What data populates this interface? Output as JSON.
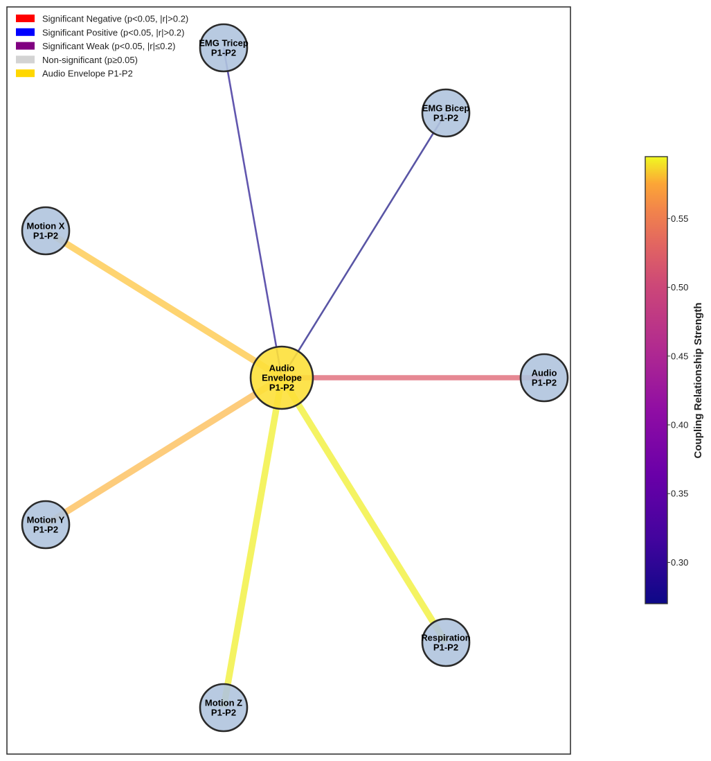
{
  "legend": [
    {
      "color": "#ff0000",
      "label": "Significant Negative (p<0.05, |r|>0.2)"
    },
    {
      "color": "#0000ff",
      "label": "Significant Positive (p<0.05, |r|>0.2)"
    },
    {
      "color": "#800080",
      "label": "Significant Weak (p<0.05, |r|≤0.2)"
    },
    {
      "color": "#d3d3d3",
      "label": "Non-significant (p≥0.05)"
    },
    {
      "color": "#ffd700",
      "label": "Audio Envelope P1-P2"
    }
  ],
  "center_node": {
    "id": "audio-envelope",
    "lines": [
      "Audio",
      "Envelope",
      "P1-P2"
    ],
    "color": "#fde03a"
  },
  "nodes": [
    {
      "id": "emg-tricep",
      "lines": [
        "EMG Tricep",
        "P1-P2"
      ]
    },
    {
      "id": "emg-bicep",
      "lines": [
        "EMG Bicep",
        "P1-P2"
      ]
    },
    {
      "id": "motion-x",
      "lines": [
        "Motion X",
        "P1-P2"
      ]
    },
    {
      "id": "audio",
      "lines": [
        "Audio",
        "P1-P2"
      ]
    },
    {
      "id": "motion-y",
      "lines": [
        "Motion Y",
        "P1-P2"
      ]
    },
    {
      "id": "respiration",
      "lines": [
        "Respiration",
        "P1-P2"
      ]
    },
    {
      "id": "motion-z",
      "lines": [
        "Motion Z",
        "P1-P2"
      ]
    }
  ],
  "edges": [
    {
      "target": "emg-tricep",
      "strength": 0.31,
      "color": "#3a2c9a",
      "significance": "significant"
    },
    {
      "target": "emg-bicep",
      "strength": 0.3,
      "color": "#2f2b8f",
      "significance": "significant"
    },
    {
      "target": "motion-x",
      "strength": 0.55,
      "color": "#fdc43a",
      "significance": "significant"
    },
    {
      "target": "audio",
      "strength": 0.45,
      "color": "#dc5a6a",
      "significance": "significant"
    },
    {
      "target": "motion-y",
      "strength": 0.54,
      "color": "#fcb94a",
      "significance": "significant"
    },
    {
      "target": "respiration",
      "strength": 0.59,
      "color": "#f0ee26",
      "significance": "significant"
    },
    {
      "target": "motion-z",
      "strength": 0.59,
      "color": "#f0ee26",
      "significance": "significant"
    }
  ],
  "node_color": "#b0c4de",
  "colorbar": {
    "label": "Coupling Relationship Strength",
    "colormap": "plasma",
    "min": 0.27,
    "max": 0.595,
    "ticks": [
      "0.30",
      "0.35",
      "0.40",
      "0.45",
      "0.50",
      "0.55"
    ],
    "tick_values": [
      0.3,
      0.35,
      0.4,
      0.45,
      0.5,
      0.55
    ]
  }
}
